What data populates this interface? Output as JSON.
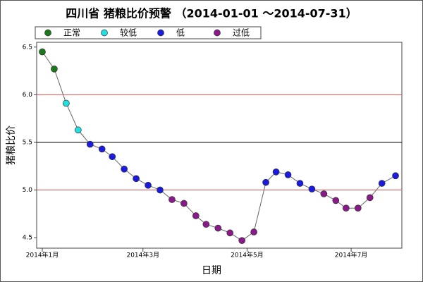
{
  "chart_data": {
    "type": "scatter-line",
    "title": "四川省 猪粮比价预警 （2014-01-01 ～2014-07-31）",
    "x_label": "日期",
    "y_label": "猪粮比价",
    "x": [
      0,
      7,
      14,
      21,
      28,
      35,
      41,
      48,
      55,
      62,
      69,
      76,
      83,
      90,
      96,
      103,
      110,
      117,
      124,
      131,
      137,
      144,
      151,
      158,
      165,
      172,
      178,
      185,
      192,
      199,
      207
    ],
    "series": [
      {
        "name": "正常",
        "color": "#1a7a1a",
        "values": [
          6.45,
          6.27,
          null,
          null,
          null,
          null,
          null,
          null,
          null,
          null,
          null,
          null,
          null,
          null,
          null,
          null,
          null,
          null,
          null,
          null,
          null,
          null,
          null,
          null,
          null,
          null,
          null,
          null,
          null,
          null,
          null
        ]
      },
      {
        "name": "较低",
        "color": "#22e0e0",
        "values": [
          null,
          null,
          5.91,
          5.63,
          null,
          null,
          null,
          null,
          null,
          null,
          null,
          null,
          null,
          null,
          null,
          null,
          null,
          null,
          null,
          null,
          null,
          null,
          null,
          null,
          null,
          null,
          null,
          null,
          null,
          null,
          null
        ]
      },
      {
        "name": "低",
        "color": "#1a1ae0",
        "values": [
          null,
          null,
          null,
          null,
          5.48,
          5.43,
          5.35,
          5.22,
          5.12,
          5.05,
          5.0,
          null,
          null,
          null,
          null,
          null,
          null,
          null,
          null,
          5.08,
          5.19,
          5.16,
          5.07,
          5.01,
          null,
          null,
          null,
          null,
          null,
          5.07,
          5.15
        ]
      },
      {
        "name": "过低",
        "color": "#8a1a8a",
        "values": [
          null,
          null,
          null,
          null,
          null,
          null,
          null,
          null,
          null,
          null,
          null,
          4.9,
          4.86,
          4.73,
          4.64,
          4.6,
          4.55,
          4.47,
          4.56,
          null,
          null,
          null,
          null,
          null,
          4.96,
          4.89,
          4.81,
          4.81,
          4.92,
          null,
          null
        ]
      }
    ],
    "line_color": "#666666",
    "xlim": [
      -3.3,
      210.7
    ],
    "xticks": [
      {
        "value": 0,
        "label": "2014年1月"
      },
      {
        "value": 59,
        "label": "2014年3月"
      },
      {
        "value": 120,
        "label": "2014年5月"
      },
      {
        "value": 181,
        "label": "2014年7月"
      }
    ],
    "ylim": [
      4.39,
      6.55
    ],
    "yticks": [
      {
        "value": 4.5,
        "label": "4.5"
      },
      {
        "value": 5,
        "label": "5.0"
      },
      {
        "value": 5.5,
        "label": "5.5"
      },
      {
        "value": 6,
        "label": "6.0"
      },
      {
        "value": 6.5,
        "label": "6.5"
      }
    ],
    "reference_lines": [
      {
        "value": 6,
        "color": "#e05050"
      },
      {
        "value": 5.5,
        "color": "#000000"
      },
      {
        "value": 5,
        "color": "#e05050"
      }
    ]
  }
}
